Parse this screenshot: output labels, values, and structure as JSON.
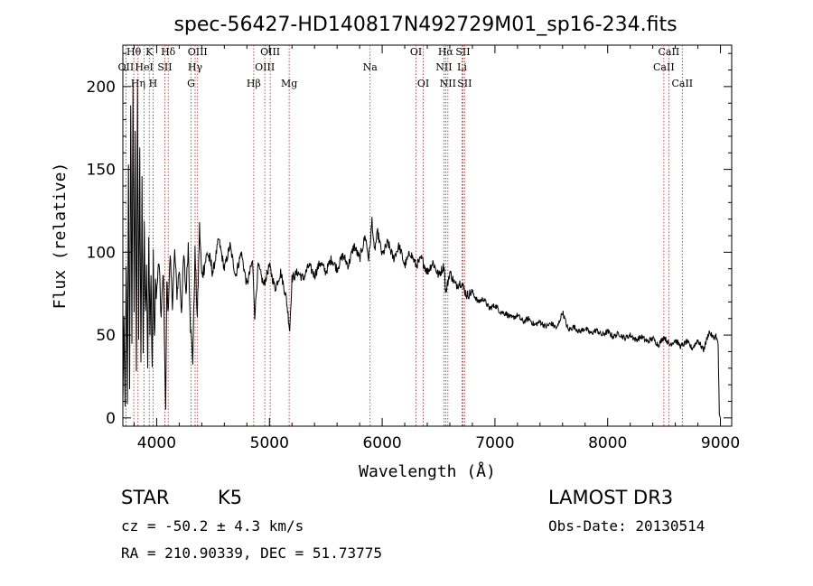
{
  "chart_data": {
    "type": "line",
    "title": "spec-56427-HD140817N492729M01_sp16-234.fits",
    "xlabel": "Wavelength (Å)",
    "ylabel": "Flux (relative)",
    "xlim": [
      3700,
      9100
    ],
    "ylim": [
      -5,
      225
    ],
    "xticks": [
      4000,
      5000,
      6000,
      7000,
      8000,
      9000
    ],
    "yticks": [
      0,
      50,
      100,
      150,
      200
    ],
    "grid": false,
    "lines": [
      {
        "name": "OII",
        "x": 3727,
        "row": 1,
        "label": "OII"
      },
      {
        "name": "H-theta",
        "x": 3797,
        "row": 0,
        "label": "Hθ"
      },
      {
        "name": "H-eta",
        "x": 3835,
        "row": 2,
        "label": "Hη"
      },
      {
        "name": "K",
        "x": 3934,
        "row": 0,
        "label": "K"
      },
      {
        "name": "H",
        "x": 3968,
        "row": 2,
        "label": "H"
      },
      {
        "name": "HeI",
        "x": 3889,
        "row": 1,
        "label": "HeI"
      },
      {
        "name": "SII-4072",
        "x": 4072,
        "row": 1,
        "label": "SII"
      },
      {
        "name": "H-delta",
        "x": 4102,
        "row": 0,
        "label": "Hδ"
      },
      {
        "name": "G",
        "x": 4305,
        "row": 2,
        "label": "G"
      },
      {
        "name": "H-gamma",
        "x": 4341,
        "row": 1,
        "label": "Hγ"
      },
      {
        "name": "OIII-4363",
        "x": 4363,
        "row": 0,
        "label": "OIII"
      },
      {
        "name": "H-beta",
        "x": 4861,
        "row": 2,
        "label": "Hβ"
      },
      {
        "name": "OIII-4959",
        "x": 4959,
        "row": 1,
        "label": "OIII"
      },
      {
        "name": "OIII-5007",
        "x": 5007,
        "row": 0,
        "label": "OIII"
      },
      {
        "name": "Mg",
        "x": 5175,
        "row": 2,
        "label": "Mg"
      },
      {
        "name": "Na",
        "x": 5893,
        "row": 1,
        "label": "Na"
      },
      {
        "name": "OI-6300",
        "x": 6300,
        "row": 0,
        "label": "OI"
      },
      {
        "name": "OI-6364",
        "x": 6364,
        "row": 2,
        "label": "OI"
      },
      {
        "name": "NII-6548",
        "x": 6548,
        "row": 1,
        "label": "NII"
      },
      {
        "name": "H-alpha",
        "x": 6563,
        "row": 0,
        "label": "Hα"
      },
      {
        "name": "NII-6583",
        "x": 6583,
        "row": 2,
        "label": "NII"
      },
      {
        "name": "Li",
        "x": 6708,
        "row": 1,
        "label": "Li"
      },
      {
        "name": "SII-6716",
        "x": 6716,
        "row": 0,
        "label": "SII"
      },
      {
        "name": "SII-6731",
        "x": 6731,
        "row": 2,
        "label": "SII"
      },
      {
        "name": "CaII-8498",
        "x": 8498,
        "row": 1,
        "label": "CaII"
      },
      {
        "name": "CaII-8542",
        "x": 8542,
        "row": 0,
        "label": "CaII"
      },
      {
        "name": "CaII-8662",
        "x": 8662,
        "row": 2,
        "label": "CaII"
      }
    ],
    "spectrum": [
      [
        3700,
        8
      ],
      [
        3710,
        60
      ],
      [
        3720,
        2
      ],
      [
        3730,
        95
      ],
      [
        3740,
        5
      ],
      [
        3750,
        150
      ],
      [
        3760,
        20
      ],
      [
        3770,
        185
      ],
      [
        3780,
        45
      ],
      [
        3790,
        205
      ],
      [
        3800,
        60
      ],
      [
        3810,
        170
      ],
      [
        3820,
        30
      ],
      [
        3830,
        195
      ],
      [
        3840,
        50
      ],
      [
        3850,
        160
      ],
      [
        3860,
        30
      ],
      [
        3870,
        145
      ],
      [
        3880,
        40
      ],
      [
        3890,
        120
      ],
      [
        3900,
        60
      ],
      [
        3910,
        95
      ],
      [
        3920,
        35
      ],
      [
        3930,
        110
      ],
      [
        3940,
        50
      ],
      [
        3950,
        85
      ],
      [
        3960,
        30
      ],
      [
        3970,
        100
      ],
      [
        3980,
        45
      ],
      [
        3990,
        80
      ],
      [
        4000,
        75
      ],
      [
        4020,
        95
      ],
      [
        4040,
        60
      ],
      [
        4060,
        90
      ],
      [
        4080,
        2
      ],
      [
        4090,
        85
      ],
      [
        4100,
        65
      ],
      [
        4120,
        95
      ],
      [
        4140,
        70
      ],
      [
        4160,
        100
      ],
      [
        4180,
        75
      ],
      [
        4200,
        90
      ],
      [
        4220,
        65
      ],
      [
        4240,
        98
      ],
      [
        4260,
        75
      ],
      [
        4280,
        105
      ],
      [
        4300,
        55
      ],
      [
        4320,
        35
      ],
      [
        4340,
        100
      ],
      [
        4360,
        60
      ],
      [
        4380,
        115
      ],
      [
        4400,
        85
      ],
      [
        4450,
        100
      ],
      [
        4500,
        88
      ],
      [
        4550,
        108
      ],
      [
        4600,
        90
      ],
      [
        4650,
        104
      ],
      [
        4700,
        86
      ],
      [
        4750,
        100
      ],
      [
        4800,
        80
      ],
      [
        4850,
        95
      ],
      [
        4870,
        62
      ],
      [
        4900,
        92
      ],
      [
        4950,
        80
      ],
      [
        5000,
        92
      ],
      [
        5050,
        78
      ],
      [
        5100,
        88
      ],
      [
        5150,
        72
      ],
      [
        5180,
        53
      ],
      [
        5200,
        84
      ],
      [
        5250,
        88
      ],
      [
        5300,
        84
      ],
      [
        5350,
        92
      ],
      [
        5400,
        86
      ],
      [
        5450,
        94
      ],
      [
        5500,
        88
      ],
      [
        5550,
        96
      ],
      [
        5600,
        90
      ],
      [
        5650,
        98
      ],
      [
        5700,
        92
      ],
      [
        5750,
        104
      ],
      [
        5800,
        96
      ],
      [
        5850,
        110
      ],
      [
        5880,
        96
      ],
      [
        5900,
        110
      ],
      [
        5910,
        120
      ],
      [
        5930,
        100
      ],
      [
        5960,
        112
      ],
      [
        6000,
        98
      ],
      [
        6050,
        106
      ],
      [
        6100,
        96
      ],
      [
        6150,
        104
      ],
      [
        6200,
        92
      ],
      [
        6250,
        100
      ],
      [
        6300,
        92
      ],
      [
        6350,
        96
      ],
      [
        6400,
        88
      ],
      [
        6450,
        94
      ],
      [
        6500,
        86
      ],
      [
        6550,
        92
      ],
      [
        6563,
        75
      ],
      [
        6600,
        88
      ],
      [
        6650,
        80
      ],
      [
        6700,
        82
      ],
      [
        6750,
        74
      ],
      [
        6800,
        76
      ],
      [
        6850,
        70
      ],
      [
        6900,
        72
      ],
      [
        6950,
        66
      ],
      [
        7000,
        68
      ],
      [
        7050,
        64
      ],
      [
        7100,
        63
      ],
      [
        7150,
        60
      ],
      [
        7200,
        62
      ],
      [
        7250,
        58
      ],
      [
        7300,
        60
      ],
      [
        7350,
        56
      ],
      [
        7400,
        58
      ],
      [
        7450,
        55
      ],
      [
        7500,
        57
      ],
      [
        7550,
        54
      ],
      [
        7600,
        64
      ],
      [
        7650,
        53
      ],
      [
        7700,
        55
      ],
      [
        7750,
        52
      ],
      [
        7800,
        54
      ],
      [
        7850,
        51
      ],
      [
        7900,
        53
      ],
      [
        7950,
        50
      ],
      [
        8000,
        52
      ],
      [
        8050,
        49
      ],
      [
        8100,
        51
      ],
      [
        8150,
        48
      ],
      [
        8200,
        50
      ],
      [
        8250,
        47
      ],
      [
        8300,
        49
      ],
      [
        8350,
        46
      ],
      [
        8400,
        48
      ],
      [
        8450,
        44
      ],
      [
        8500,
        49
      ],
      [
        8550,
        44
      ],
      [
        8600,
        47
      ],
      [
        8650,
        43
      ],
      [
        8700,
        46
      ],
      [
        8750,
        42
      ],
      [
        8800,
        47
      ],
      [
        8850,
        41
      ],
      [
        8900,
        52
      ],
      [
        8940,
        48
      ],
      [
        8960,
        50
      ],
      [
        8980,
        44
      ],
      [
        8990,
        2
      ],
      [
        9000,
        0
      ]
    ]
  },
  "info": {
    "object_class": "STAR",
    "subclass": "K5",
    "survey": "LAMOST DR3",
    "redshift": "cz = -50.2 ± 4.3 km/s",
    "obs_date": "Obs-Date: 20130514",
    "coords": "RA = 210.90339, DEC =  51.73775"
  }
}
